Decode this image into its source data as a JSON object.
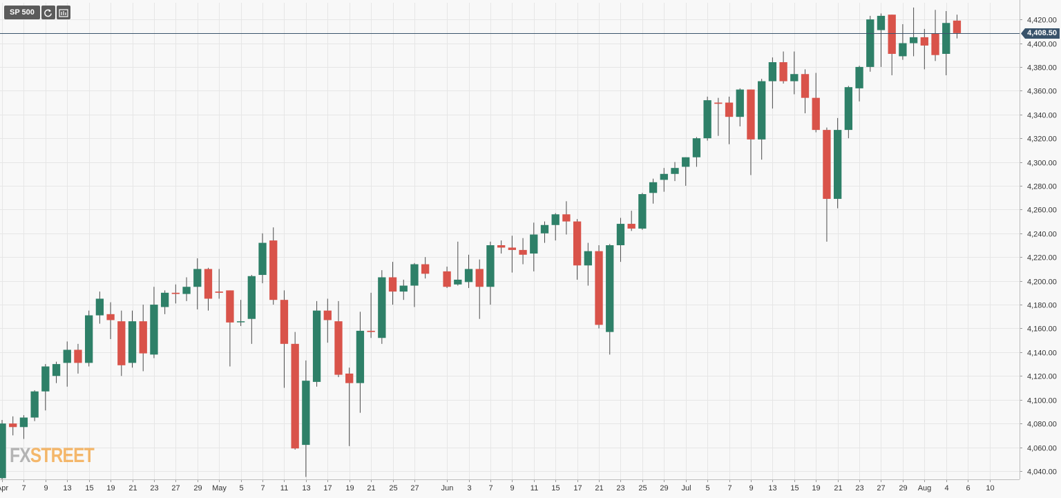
{
  "toolbar": {
    "symbol": "SP 500",
    "refresh_icon": "refresh-icon",
    "indicator_icon": "chart-settings-icon"
  },
  "current_price_label": "4,408.50",
  "watermark": {
    "part1": "FX",
    "part2": "STREET"
  },
  "colors": {
    "up": "#2e8068",
    "down": "#d9534a",
    "wick": "#4a4a4a",
    "price_line": "#39536b",
    "grid": "#e6e6e6",
    "background": "#f8f8f8"
  },
  "chart_data": {
    "type": "candlestick",
    "ylim": [
      4033,
      4434
    ],
    "current_price": 4408.5,
    "y_ticks": [
      4040,
      4060,
      4080,
      4100,
      4120,
      4140,
      4160,
      4180,
      4200,
      4220,
      4240,
      4260,
      4280,
      4300,
      4320,
      4340,
      4360,
      4380,
      4400,
      4420
    ],
    "y_tick_labels": [
      "4,040.00",
      "4,060.00",
      "4,080.00",
      "4,100.00",
      "4,120.00",
      "4,140.00",
      "4,160.00",
      "4,180.00",
      "4,200.00",
      "4,220.00",
      "4,240.00",
      "4,260.00",
      "4,280.00",
      "4,300.00",
      "4,320.00",
      "4,340.00",
      "4,360.00",
      "4,380.00",
      "4,400.00",
      "4,420.00"
    ],
    "x_ticks": [
      {
        "date": "2021-04-05",
        "label": "Apr"
      },
      {
        "date": "2021-04-07",
        "label": "7"
      },
      {
        "date": "2021-04-09",
        "label": "9"
      },
      {
        "date": "2021-04-13",
        "label": "13"
      },
      {
        "date": "2021-04-15",
        "label": "15"
      },
      {
        "date": "2021-04-19",
        "label": "19"
      },
      {
        "date": "2021-04-21",
        "label": "21"
      },
      {
        "date": "2021-04-23",
        "label": "23"
      },
      {
        "date": "2021-04-27",
        "label": "27"
      },
      {
        "date": "2021-04-29",
        "label": "29"
      },
      {
        "date": "2021-05-03",
        "label": "May"
      },
      {
        "date": "2021-05-05",
        "label": "5"
      },
      {
        "date": "2021-05-07",
        "label": "7"
      },
      {
        "date": "2021-05-11",
        "label": "11"
      },
      {
        "date": "2021-05-13",
        "label": "13"
      },
      {
        "date": "2021-05-17",
        "label": "17"
      },
      {
        "date": "2021-05-19",
        "label": "19"
      },
      {
        "date": "2021-05-21",
        "label": "21"
      },
      {
        "date": "2021-05-25",
        "label": "25"
      },
      {
        "date": "2021-05-27",
        "label": "27"
      },
      {
        "date": "2021-06-01",
        "label": "Jun"
      },
      {
        "date": "2021-06-03",
        "label": "3"
      },
      {
        "date": "2021-06-07",
        "label": "7"
      },
      {
        "date": "2021-06-09",
        "label": "9"
      },
      {
        "date": "2021-06-11",
        "label": "11"
      },
      {
        "date": "2021-06-15",
        "label": "15"
      },
      {
        "date": "2021-06-17",
        "label": "17"
      },
      {
        "date": "2021-06-21",
        "label": "21"
      },
      {
        "date": "2021-06-23",
        "label": "23"
      },
      {
        "date": "2021-06-25",
        "label": "25"
      },
      {
        "date": "2021-06-29",
        "label": "29"
      },
      {
        "date": "2021-07-01",
        "label": "Jul"
      },
      {
        "date": "2021-07-05",
        "label": "5"
      },
      {
        "date": "2021-07-07",
        "label": "7"
      },
      {
        "date": "2021-07-09",
        "label": "9"
      },
      {
        "date": "2021-07-13",
        "label": "13"
      },
      {
        "date": "2021-07-15",
        "label": "15"
      },
      {
        "date": "2021-07-19",
        "label": "19"
      },
      {
        "date": "2021-07-21",
        "label": "21"
      },
      {
        "date": "2021-07-23",
        "label": "23"
      },
      {
        "date": "2021-07-27",
        "label": "27"
      },
      {
        "date": "2021-07-29",
        "label": "29"
      },
      {
        "date": "2021-08-02",
        "label": "Aug"
      },
      {
        "date": "2021-08-04",
        "label": "4"
      },
      {
        "date": "2021-08-06",
        "label": "6"
      },
      {
        "date": "2021-08-10",
        "label": "10"
      }
    ],
    "x_end_date": "2021-08-12",
    "candles": [
      {
        "date": "2021-04-05",
        "open": 4034,
        "high": 4083,
        "low": 4033,
        "close": 4080
      },
      {
        "date": "2021-04-06",
        "open": 4080,
        "high": 4086,
        "low": 4070,
        "close": 4077
      },
      {
        "date": "2021-04-07",
        "open": 4077,
        "high": 4087,
        "low": 4067,
        "close": 4085
      },
      {
        "date": "2021-04-08",
        "open": 4085,
        "high": 4108,
        "low": 4082,
        "close": 4107
      },
      {
        "date": "2021-04-09",
        "open": 4107,
        "high": 4130,
        "low": 4091,
        "close": 4128
      },
      {
        "date": "2021-04-12",
        "open": 4120,
        "high": 4132,
        "low": 4114,
        "close": 4130
      },
      {
        "date": "2021-04-13",
        "open": 4131,
        "high": 4149,
        "low": 4111,
        "close": 4142
      },
      {
        "date": "2021-04-14",
        "open": 4142,
        "high": 4147,
        "low": 4122,
        "close": 4131
      },
      {
        "date": "2021-04-15",
        "open": 4131,
        "high": 4175,
        "low": 4128,
        "close": 4171
      },
      {
        "date": "2021-04-16",
        "open": 4171,
        "high": 4191,
        "low": 4164,
        "close": 4185
      },
      {
        "date": "2021-04-19",
        "open": 4172,
        "high": 4182,
        "low": 4151,
        "close": 4167
      },
      {
        "date": "2021-04-20",
        "open": 4166,
        "high": 4175,
        "low": 4120,
        "close": 4129
      },
      {
        "date": "2021-04-21",
        "open": 4131,
        "high": 4175,
        "low": 4127,
        "close": 4166
      },
      {
        "date": "2021-04-22",
        "open": 4166,
        "high": 4180,
        "low": 4124,
        "close": 4139
      },
      {
        "date": "2021-04-23",
        "open": 4138,
        "high": 4195,
        "low": 4135,
        "close": 4180
      },
      {
        "date": "2021-04-26",
        "open": 4178,
        "high": 4192,
        "low": 4172,
        "close": 4190
      },
      {
        "date": "2021-04-27",
        "open": 4190,
        "high": 4197,
        "low": 4181,
        "close": 4189
      },
      {
        "date": "2021-04-28",
        "open": 4189,
        "high": 4203,
        "low": 4183,
        "close": 4195
      },
      {
        "date": "2021-04-29",
        "open": 4195,
        "high": 4219,
        "low": 4176,
        "close": 4210
      },
      {
        "date": "2021-04-30",
        "open": 4210,
        "high": 4211,
        "low": 4175,
        "close": 4185
      },
      {
        "date": "2021-05-03",
        "open": 4191,
        "high": 4210,
        "low": 4185,
        "close": 4190
      },
      {
        "date": "2021-05-04",
        "open": 4192,
        "high": 4192,
        "low": 4128,
        "close": 4165
      },
      {
        "date": "2021-05-05",
        "open": 4166,
        "high": 4184,
        "low": 4162,
        "close": 4166
      },
      {
        "date": "2021-05-06",
        "open": 4168,
        "high": 4205,
        "low": 4147,
        "close": 4204
      },
      {
        "date": "2021-05-07",
        "open": 4205,
        "high": 4240,
        "low": 4198,
        "close": 4232
      },
      {
        "date": "2021-05-10",
        "open": 4234,
        "high": 4245,
        "low": 4180,
        "close": 4184
      },
      {
        "date": "2021-05-11",
        "open": 4184,
        "high": 4192,
        "low": 4110,
        "close": 4147
      },
      {
        "date": "2021-05-12",
        "open": 4147,
        "high": 4157,
        "low": 4058,
        "close": 4059
      },
      {
        "date": "2021-05-13",
        "open": 4062,
        "high": 4133,
        "low": 4035,
        "close": 4116
      },
      {
        "date": "2021-05-14",
        "open": 4115,
        "high": 4183,
        "low": 4111,
        "close": 4175
      },
      {
        "date": "2021-05-17",
        "open": 4175,
        "high": 4185,
        "low": 4148,
        "close": 4167
      },
      {
        "date": "2021-05-18",
        "open": 4166,
        "high": 4183,
        "low": 4119,
        "close": 4121
      },
      {
        "date": "2021-05-19",
        "open": 4122,
        "high": 4127,
        "low": 4061,
        "close": 4114
      },
      {
        "date": "2021-05-20",
        "open": 4114,
        "high": 4174,
        "low": 4089,
        "close": 4158
      },
      {
        "date": "2021-05-21",
        "open": 4158,
        "high": 4190,
        "low": 4152,
        "close": 4157
      },
      {
        "date": "2021-05-24",
        "open": 4152,
        "high": 4209,
        "low": 4147,
        "close": 4203
      },
      {
        "date": "2021-05-25",
        "open": 4203,
        "high": 4216,
        "low": 4180,
        "close": 4191
      },
      {
        "date": "2021-05-26",
        "open": 4191,
        "high": 4201,
        "low": 4184,
        "close": 4196
      },
      {
        "date": "2021-05-27",
        "open": 4196,
        "high": 4215,
        "low": 4178,
        "close": 4214
      },
      {
        "date": "2021-05-28",
        "open": 4214,
        "high": 4220,
        "low": 4202,
        "close": 4206
      },
      {
        "date": "2021-06-01",
        "open": 4208,
        "high": 4212,
        "low": 4194,
        "close": 4195
      },
      {
        "date": "2021-06-02",
        "open": 4197,
        "high": 4233,
        "low": 4196,
        "close": 4201
      },
      {
        "date": "2021-06-03",
        "open": 4199,
        "high": 4222,
        "low": 4194,
        "close": 4210
      },
      {
        "date": "2021-06-04",
        "open": 4210,
        "high": 4218,
        "low": 4168,
        "close": 4195
      },
      {
        "date": "2021-06-07",
        "open": 4195,
        "high": 4233,
        "low": 4180,
        "close": 4230
      },
      {
        "date": "2021-06-08",
        "open": 4230,
        "high": 4234,
        "low": 4223,
        "close": 4228
      },
      {
        "date": "2021-06-09",
        "open": 4228,
        "high": 4238,
        "low": 4207,
        "close": 4226
      },
      {
        "date": "2021-06-10",
        "open": 4226,
        "high": 4236,
        "low": 4214,
        "close": 4222
      },
      {
        "date": "2021-06-11",
        "open": 4223,
        "high": 4249,
        "low": 4208,
        "close": 4239
      },
      {
        "date": "2021-06-14",
        "open": 4240,
        "high": 4250,
        "low": 4232,
        "close": 4247
      },
      {
        "date": "2021-06-15",
        "open": 4247,
        "high": 4257,
        "low": 4234,
        "close": 4256
      },
      {
        "date": "2021-06-16",
        "open": 4256,
        "high": 4267,
        "low": 4239,
        "close": 4250
      },
      {
        "date": "2021-06-17",
        "open": 4250,
        "high": 4252,
        "low": 4201,
        "close": 4213
      },
      {
        "date": "2021-06-18",
        "open": 4213,
        "high": 4232,
        "low": 4196,
        "close": 4225
      },
      {
        "date": "2021-06-21",
        "open": 4225,
        "high": 4230,
        "low": 4160,
        "close": 4163
      },
      {
        "date": "2021-06-22",
        "open": 4157,
        "high": 4231,
        "low": 4138,
        "close": 4230
      },
      {
        "date": "2021-06-23",
        "open": 4230,
        "high": 4253,
        "low": 4216,
        "close": 4248
      },
      {
        "date": "2021-06-24",
        "open": 4248,
        "high": 4259,
        "low": 4242,
        "close": 4244
      },
      {
        "date": "2021-06-25",
        "open": 4244,
        "high": 4274,
        "low": 4243,
        "close": 4273
      },
      {
        "date": "2021-06-28",
        "open": 4274,
        "high": 4286,
        "low": 4265,
        "close": 4283
      },
      {
        "date": "2021-06-29",
        "open": 4285,
        "high": 4295,
        "low": 4275,
        "close": 4290
      },
      {
        "date": "2021-06-30",
        "open": 4290,
        "high": 4300,
        "low": 4284,
        "close": 4295
      },
      {
        "date": "2021-07-01",
        "open": 4296,
        "high": 4304,
        "low": 4280,
        "close": 4304
      },
      {
        "date": "2021-07-02",
        "open": 4304,
        "high": 4321,
        "low": 4296,
        "close": 4320
      },
      {
        "date": "2021-07-05",
        "open": 4320,
        "high": 4355,
        "low": 4318,
        "close": 4352
      },
      {
        "date": "2021-07-06",
        "open": 4350,
        "high": 4354,
        "low": 4322,
        "close": 4349
      },
      {
        "date": "2021-07-07",
        "open": 4350,
        "high": 4355,
        "low": 4315,
        "close": 4338
      },
      {
        "date": "2021-07-08",
        "open": 4338,
        "high": 4362,
        "low": 4330,
        "close": 4361
      },
      {
        "date": "2021-07-09",
        "open": 4361,
        "high": 4361,
        "low": 4289,
        "close": 4319
      },
      {
        "date": "2021-07-12",
        "open": 4319,
        "high": 4370,
        "low": 4302,
        "close": 4368
      },
      {
        "date": "2021-07-13",
        "open": 4368,
        "high": 4388,
        "low": 4345,
        "close": 4384
      },
      {
        "date": "2021-07-14",
        "open": 4384,
        "high": 4393,
        "low": 4366,
        "close": 4368
      },
      {
        "date": "2021-07-15",
        "open": 4368,
        "high": 4393,
        "low": 4357,
        "close": 4374
      },
      {
        "date": "2021-07-16",
        "open": 4374,
        "high": 4378,
        "low": 4341,
        "close": 4354
      },
      {
        "date": "2021-07-19",
        "open": 4354,
        "high": 4375,
        "low": 4325,
        "close": 4327
      },
      {
        "date": "2021-07-20",
        "open": 4327,
        "high": 4329,
        "low": 4233,
        "close": 4269
      },
      {
        "date": "2021-07-21",
        "open": 4269,
        "high": 4337,
        "low": 4261,
        "close": 4327
      },
      {
        "date": "2021-07-22",
        "open": 4327,
        "high": 4364,
        "low": 4320,
        "close": 4363
      },
      {
        "date": "2021-07-23",
        "open": 4362,
        "high": 4381,
        "low": 4351,
        "close": 4380
      },
      {
        "date": "2021-07-26",
        "open": 4380,
        "high": 4423,
        "low": 4376,
        "close": 4420
      },
      {
        "date": "2021-07-27",
        "open": 4411,
        "high": 4425,
        "low": 4380,
        "close": 4423
      },
      {
        "date": "2021-07-28",
        "open": 4424,
        "high": 4424,
        "low": 4373,
        "close": 4391
      },
      {
        "date": "2021-07-29",
        "open": 4389,
        "high": 4416,
        "low": 4386,
        "close": 4400
      },
      {
        "date": "2021-07-30",
        "open": 4400,
        "high": 4430,
        "low": 4389,
        "close": 4405
      },
      {
        "date": "2021-08-02",
        "open": 4405,
        "high": 4412,
        "low": 4378,
        "close": 4398
      },
      {
        "date": "2021-08-03",
        "open": 4408,
        "high": 4428,
        "low": 4385,
        "close": 4390
      },
      {
        "date": "2021-08-04",
        "open": 4391,
        "high": 4427,
        "low": 4373,
        "close": 4417
      },
      {
        "date": "2021-08-05",
        "open": 4419,
        "high": 4424,
        "low": 4404,
        "close": 4408.5
      }
    ]
  }
}
